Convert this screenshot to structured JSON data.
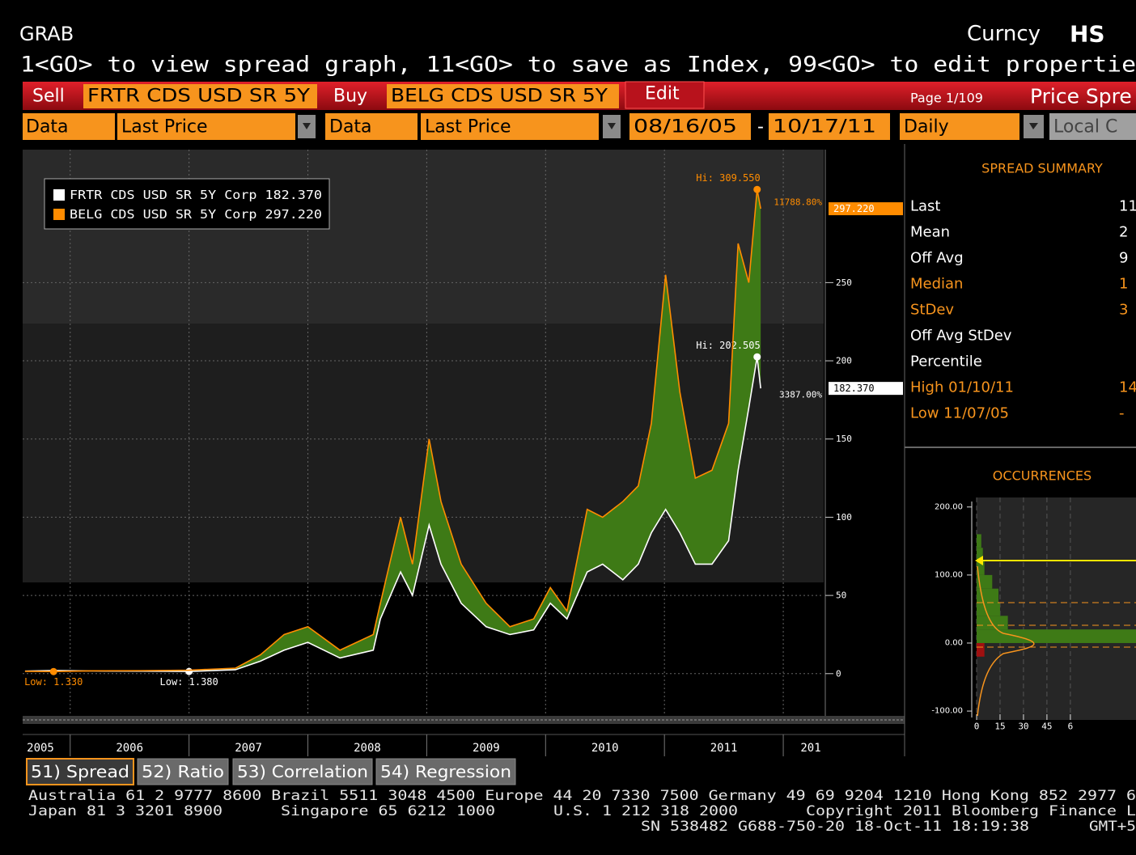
{
  "header": {
    "screen": "GRAB",
    "market": "Curncy",
    "code": "HS"
  },
  "instructions": "1<GO> to view spread graph, 11<GO> to save as Index, 99<GO> to edit propertie",
  "toolbar": {
    "sell_label": "Sell",
    "sell_security": "FRTR CDS USD SR 5Y",
    "buy_label": "Buy",
    "buy_security": "BELG CDS USD SR 5Y",
    "edit": "Edit",
    "page": "Page 1/109",
    "view": "Price Spre"
  },
  "settings": {
    "sell_data_label": "Data",
    "sell_field": "Last Price",
    "buy_data_label": "Data",
    "buy_field": "Last Price",
    "start_date": "08/16/05",
    "separator": "-",
    "end_date": "10/17/11",
    "frequency": "Daily",
    "currency": "Local C"
  },
  "chart_data": [
    {
      "type": "line",
      "x": [
        2005.62,
        2005.86,
        2006.2,
        2006.6,
        2007.0,
        2007.39,
        2007.6,
        2007.8,
        2008.0,
        2008.27,
        2008.55,
        2008.61,
        2008.78,
        2008.88,
        2009.02,
        2009.12,
        2009.29,
        2009.5,
        2009.7,
        2009.9,
        2010.04,
        2010.18,
        2010.35,
        2010.48,
        2010.65,
        2010.78,
        2010.89,
        2011.01,
        2011.13,
        2011.26,
        2011.4,
        2011.54,
        2011.62,
        2011.71,
        2011.78,
        2011.81
      ],
      "series": [
        {
          "name": "FRTR CDS USD SR 5Y Corp 182.370",
          "color": "#ffffff",
          "values": [
            1.6,
            2.0,
            1.7,
            1.6,
            1.38,
            2.5,
            8,
            15,
            20,
            10,
            15,
            35,
            65,
            50,
            95,
            70,
            45,
            30,
            25,
            28,
            45,
            35,
            65,
            70,
            60,
            70,
            90,
            105,
            90,
            70,
            70,
            85,
            130,
            170,
            202.505,
            182.37
          ],
          "hi_label": "Hi: 202.505",
          "low_label": "Low: 1.380",
          "change_label": "3387.00%",
          "last_label": "182.370"
        },
        {
          "name": "BELG CDS USD SR 5Y Corp 297.220",
          "color": "#ff8c00",
          "values": [
            1.5,
            1.33,
            1.8,
            1.9,
            2.2,
            3.5,
            12,
            25,
            30,
            15,
            25,
            45,
            100,
            70,
            150,
            110,
            70,
            45,
            30,
            35,
            55,
            40,
            105,
            100,
            110,
            120,
            160,
            255,
            180,
            125,
            130,
            160,
            275,
            250,
            309.55,
            297.22
          ],
          "hi_label": "Hi: 309.550",
          "low_label": "Low: 1.330",
          "change_label": "11788.80%",
          "last_label": "297.220"
        }
      ],
      "fill_color": "#3e7a16",
      "xlim": [
        2005.6,
        2012.34
      ],
      "xticks": [
        2005,
        2006,
        2007,
        2008,
        2009,
        2010,
        2011,
        {
          "value": 2012,
          "label": "201"
        }
      ],
      "ylim": [
        -27,
        335
      ],
      "yticks": [
        0,
        50,
        100,
        150,
        200,
        250
      ],
      "grid": true
    },
    {
      "type": "histogram",
      "title": "OCCURRENCES",
      "bins": [
        -20,
        0,
        20,
        40,
        60,
        80,
        100,
        120,
        140,
        160
      ],
      "counts": [
        5,
        102,
        20,
        15,
        14,
        10,
        5,
        4,
        3
      ],
      "color": "#3e7a16",
      "negative_color": "#a01010",
      "xlim": [
        0,
        102
      ],
      "xticks": [
        0,
        15,
        30,
        45,
        {
          "value": 60,
          "label": "6"
        }
      ],
      "ylim": [
        -113,
        214
      ],
      "yticks": [
        {
          "value": 200,
          "label": "200.00"
        },
        {
          "value": 100,
          "label": "100.00"
        },
        {
          "value": 0,
          "label": "0.00"
        },
        {
          "value": -100,
          "label": "-100.00"
        }
      ]
    }
  ],
  "summary": {
    "title": "SPREAD SUMMARY",
    "rows": [
      {
        "label": "Last",
        "value": "11",
        "color": "#ffffff"
      },
      {
        "label": "Mean",
        "value": "2",
        "color": "#ffffff"
      },
      {
        "label": "Off Avg",
        "value": "9",
        "color": "#ffffff"
      },
      {
        "label": "Median",
        "value": "1",
        "color": "#f7941d"
      },
      {
        "label": "StDev",
        "value": "3",
        "color": "#f7941d"
      },
      {
        "label": "Off Avg StDev",
        "color": "#ffffff"
      },
      {
        "label": "Percentile",
        "color": "#ffffff"
      },
      {
        "label": "High 01/10/11",
        "value": "14",
        "color": "#f7941d"
      },
      {
        "label": "Low 11/07/05",
        "value": "-",
        "color": "#f7941d"
      }
    ]
  },
  "tabs": [
    "51) Spread",
    "52) Ratio",
    "53) Correlation",
    "54) Regression"
  ],
  "footer": {
    "line1": "Australia 61 2 9777 8600 Brazil 5511 3048 4500 Europe 44 20 7330 7500 Germany 49 69 9204 1210 Hong Kong 852 2977 6",
    "line2": [
      "Japan 81 3 3201 8900",
      "Singapore 65 6212 1000",
      "U.S. 1 212 318 2000",
      "Copyright 2011 Bloomberg Finance L"
    ],
    "line3": [
      "SN 538482 G688-750-20 18-Oct-11 18:19:38",
      "GMT+5"
    ]
  }
}
